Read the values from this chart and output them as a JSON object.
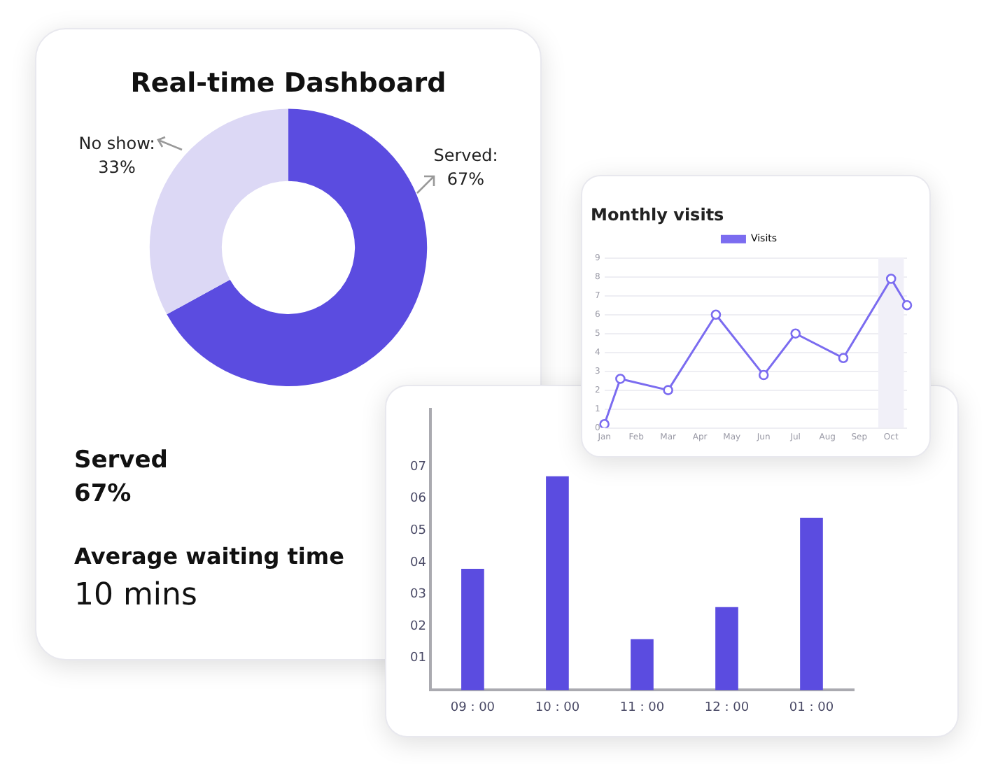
{
  "chart_data": [
    {
      "type": "donut",
      "title": "Real-time Dashboard",
      "categories": [
        null,
        null
      ],
      "values": [
        67,
        33
      ],
      "colors": [
        "#5b4ce0",
        "#dcd8f5"
      ],
      "value_labels": [
        "Served: 67%",
        "No show: 33%"
      ],
      "legend": false,
      "annotations": [
        "Served",
        "67%",
        "Average waiting time",
        "10 mins"
      ]
    },
    {
      "type": "line",
      "title": "Monthly visits",
      "categories": [
        "Jan",
        null,
        "Feb",
        null,
        "Mar",
        null,
        "Apr",
        null,
        "May",
        null,
        "Jun",
        null,
        "Jul",
        null,
        "Aug",
        null,
        "Sep",
        null,
        "Oct",
        null
      ],
      "ylim": [
        0,
        9
      ],
      "yticks": [
        0,
        1,
        2,
        3,
        4,
        5,
        6,
        7,
        8,
        9
      ],
      "series": [
        {
          "name": "Visits",
          "color": "#7b6cf0",
          "values": [
            0.2,
            2.6,
            null,
            null,
            2.0,
            null,
            null,
            6.0,
            null,
            null,
            2.8,
            null,
            5.0,
            null,
            null,
            3.7,
            null,
            null,
            7.9,
            6.5
          ]
        }
      ],
      "bands": [
        {
          "axis": "x",
          "from": "Oct",
          "to": "Oct",
          "color": "#f1f0f8"
        }
      ],
      "grid": "y",
      "legend": "top",
      "marker": "circle",
      "line_style": "solid"
    },
    {
      "type": "bar",
      "categories": [
        "09 : 00",
        "10 : 00",
        "11 : 00",
        "12 : 00",
        "01 : 00"
      ],
      "values": [
        3.8,
        6.7,
        1.6,
        2.6,
        5.4
      ],
      "color": "#5b4ce0",
      "ylim": [
        0,
        8.8
      ],
      "yticks": [
        {
          "value": 1,
          "label": "01"
        },
        {
          "value": 2,
          "label": "02"
        },
        {
          "value": 3,
          "label": "03"
        },
        {
          "value": 4,
          "label": "04"
        },
        {
          "value": 5,
          "label": "05"
        },
        {
          "value": 6,
          "label": "06"
        },
        {
          "value": 7,
          "label": "07"
        }
      ],
      "grid": false,
      "legend": false
    }
  ]
}
